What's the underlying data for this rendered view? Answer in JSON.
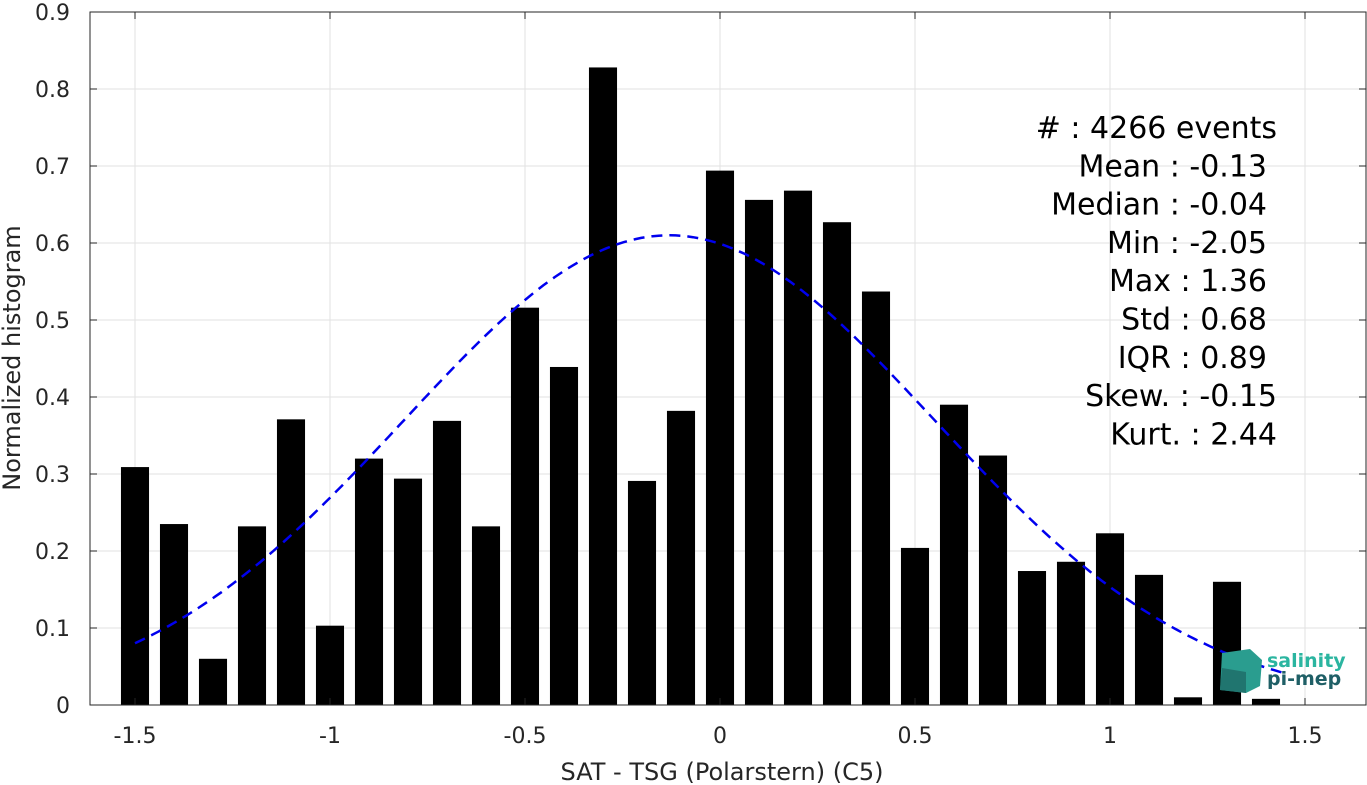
{
  "chart_data": {
    "type": "bar",
    "xlabel": "SAT - TSG (Polarstern) (C5)",
    "ylabel": "Normalized histogram",
    "xlim": [
      -1.55,
      1.6
    ],
    "ylim": [
      0,
      0.9
    ],
    "x_ticks": [
      -1.5,
      -1,
      -0.5,
      0,
      0.5,
      1,
      1.5
    ],
    "x_tick_labels": [
      "-1.5",
      "-1",
      "-0.5",
      "0",
      "0.5",
      "1",
      "1.5"
    ],
    "y_ticks": [
      0,
      0.1,
      0.2,
      0.3,
      0.4,
      0.5,
      0.6,
      0.7,
      0.8,
      0.9
    ],
    "y_tick_labels": [
      "0",
      "0.1",
      "0.2",
      "0.3",
      "0.4",
      "0.5",
      "0.6",
      "0.7",
      "0.8",
      "0.9"
    ],
    "grid": true,
    "bar_color": "#000000",
    "bin_width": 0.1,
    "bar_width_fraction": 0.72,
    "bins": [
      -1.5,
      -1.4,
      -1.3,
      -1.2,
      -1.1,
      -1.0,
      -0.9,
      -0.8,
      -0.7,
      -0.6,
      -0.5,
      -0.4,
      -0.3,
      -0.2,
      -0.1,
      0.0,
      0.1,
      0.2,
      0.3,
      0.4,
      0.5,
      0.6,
      0.7,
      0.8,
      0.9,
      1.0,
      1.1,
      1.2,
      1.3,
      1.4
    ],
    "values": [
      0.309,
      0.235,
      0.06,
      0.232,
      0.371,
      0.103,
      0.32,
      0.294,
      0.369,
      0.232,
      0.516,
      0.439,
      0.828,
      0.291,
      0.382,
      0.694,
      0.656,
      0.668,
      0.627,
      0.537,
      0.204,
      0.39,
      0.324,
      0.174,
      0.186,
      0.223,
      0.169,
      0.01,
      0.16,
      0.008
    ],
    "fit_curve": {
      "style": "dashed",
      "color": "#0000ee",
      "mean": -0.13,
      "std": 0.68,
      "peak": 0.61,
      "x_range": [
        -1.5,
        1.45
      ]
    },
    "stats": [
      {
        "label": "#  : 4266 events"
      },
      {
        "label": "Mean : -0.13"
      },
      {
        "label": "Median : -0.04"
      },
      {
        "label": "Min : -2.05"
      },
      {
        "label": "Max : 1.36"
      },
      {
        "label": "Std : 0.68"
      },
      {
        "label": "IQR : 0.89"
      },
      {
        "label": "Skew. : -0.15"
      },
      {
        "label": "Kurt. : 2.44"
      }
    ]
  },
  "logo": {
    "line1": "salinity",
    "line2": "pi-mep",
    "color1": "#2bb5a0",
    "color2": "#1f5f66"
  }
}
